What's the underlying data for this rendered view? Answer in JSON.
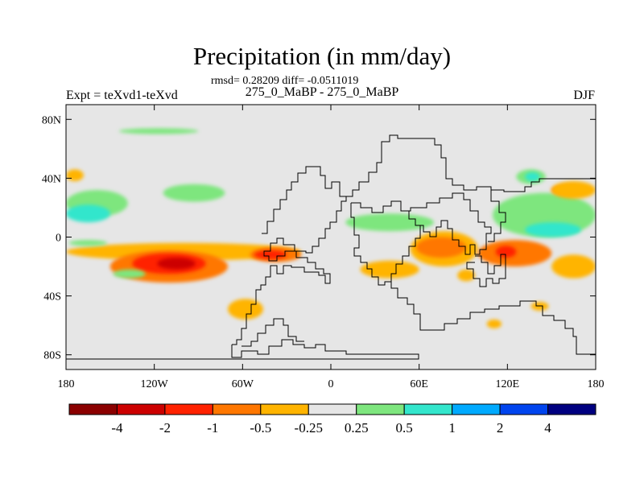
{
  "chart_data": {
    "type": "heatmap",
    "title": "Precipitation (in mm/day)",
    "stats": "rmsd= 0.28209 diff= -0.0511019",
    "subtitle": "275_0_MaBP - 275_0_MaBP",
    "left_label": "Expt = teXvd1-teXvd",
    "right_label": "DJF",
    "xlim": [
      -180,
      180
    ],
    "ylim": [
      -90,
      90
    ],
    "x_ticks": [
      {
        "value": -180,
        "label": "180"
      },
      {
        "value": -120,
        "label": "120W"
      },
      {
        "value": -60,
        "label": "60W"
      },
      {
        "value": 0,
        "label": "0"
      },
      {
        "value": 60,
        "label": "60E"
      },
      {
        "value": 120,
        "label": "120E"
      },
      {
        "value": 180,
        "label": "180"
      }
    ],
    "y_ticks": [
      {
        "value": 80,
        "label": "80N"
      },
      {
        "value": 40,
        "label": "40N"
      },
      {
        "value": 0,
        "label": "0"
      },
      {
        "value": -40,
        "label": "40S"
      },
      {
        "value": -80,
        "label": "80S"
      }
    ],
    "levels": [
      "-4",
      "-2",
      "-1",
      "-0.5",
      "-0.25",
      "0.25",
      "0.5",
      "1",
      "2",
      "4"
    ],
    "colors": [
      "#8b0000",
      "#cc0000",
      "#ff2200",
      "#ff7700",
      "#ffb400",
      "#e6e6e6",
      "#7ee67e",
      "#33e6cc",
      "#00aaff",
      "#0044ee",
      "#000080"
    ],
    "background_color": "#e6e6e6",
    "regions": [
      {
        "bin": 6,
        "lon": [
          -144,
          -90
        ],
        "lat": [
          70,
          74
        ]
      },
      {
        "bin": 4,
        "lon": [
          -180,
          -168
        ],
        "lat": [
          38,
          46
        ]
      },
      {
        "bin": 6,
        "lon": [
          -180,
          -138
        ],
        "lat": [
          14,
          32
        ]
      },
      {
        "bin": 7,
        "lon": [
          -180,
          -150
        ],
        "lat": [
          10,
          22
        ]
      },
      {
        "bin": 6,
        "lon": [
          -114,
          -72
        ],
        "lat": [
          24,
          36
        ]
      },
      {
        "bin": 4,
        "lon": [
          -180,
          -20
        ],
        "lat": [
          -16,
          -4
        ]
      },
      {
        "bin": 3,
        "lon": [
          -150,
          -70
        ],
        "lat": [
          -31,
          -9
        ]
      },
      {
        "bin": 2,
        "lon": [
          -135,
          -85
        ],
        "lat": [
          -25,
          -11
        ]
      },
      {
        "bin": 1,
        "lon": [
          -118,
          -92
        ],
        "lat": [
          -22,
          -14
        ]
      },
      {
        "bin": 3,
        "lon": [
          -55,
          -20
        ],
        "lat": [
          -17,
          -7
        ]
      },
      {
        "bin": 2,
        "lon": [
          -52,
          -30
        ],
        "lat": [
          -15,
          -9
        ]
      },
      {
        "bin": 4,
        "lon": [
          -70,
          -46
        ],
        "lat": [
          -56,
          -42
        ]
      },
      {
        "bin": 6,
        "lon": [
          -148,
          -126
        ],
        "lat": [
          -28,
          -22
        ]
      },
      {
        "bin": 6,
        "lon": [
          -178,
          -152
        ],
        "lat": [
          -6,
          -2
        ]
      },
      {
        "bin": 4,
        "lon": [
          54,
          100
        ],
        "lat": [
          -20,
          4
        ]
      },
      {
        "bin": 3,
        "lon": [
          58,
          92
        ],
        "lat": [
          -14,
          0
        ]
      },
      {
        "bin": 4,
        "lon": [
          20,
          60
        ],
        "lat": [
          -28,
          -16
        ]
      },
      {
        "bin": 3,
        "lon": [
          100,
          150
        ],
        "lat": [
          -20,
          -2
        ]
      },
      {
        "bin": 2,
        "lon": [
          112,
          126
        ],
        "lat": [
          -14,
          -6
        ]
      },
      {
        "bin": 4,
        "lon": [
          150,
          180
        ],
        "lat": [
          -28,
          -12
        ]
      },
      {
        "bin": 6,
        "lon": [
          10,
          70
        ],
        "lat": [
          4,
          16
        ]
      },
      {
        "bin": 6,
        "lon": [
          110,
          180
        ],
        "lat": [
          0,
          30
        ]
      },
      {
        "bin": 7,
        "lon": [
          132,
          170
        ],
        "lat": [
          0,
          10
        ]
      },
      {
        "bin": 6,
        "lon": [
          126,
          146
        ],
        "lat": [
          36,
          46
        ]
      },
      {
        "bin": 7,
        "lon": [
          132,
          142
        ],
        "lat": [
          38,
          44
        ]
      },
      {
        "bin": 3,
        "lon": [
          150,
          170
        ],
        "lat": [
          29,
          35
        ]
      },
      {
        "bin": 4,
        "lon": [
          150,
          180
        ],
        "lat": [
          26,
          38
        ]
      },
      {
        "bin": 4,
        "lon": [
          106,
          116
        ],
        "lat": [
          -62,
          -56
        ]
      },
      {
        "bin": 4,
        "lon": [
          136,
          148
        ],
        "lat": [
          -50,
          -44
        ]
      },
      {
        "bin": 4,
        "lon": [
          86,
          98
        ],
        "lat": [
          -30,
          -22
        ]
      }
    ]
  }
}
